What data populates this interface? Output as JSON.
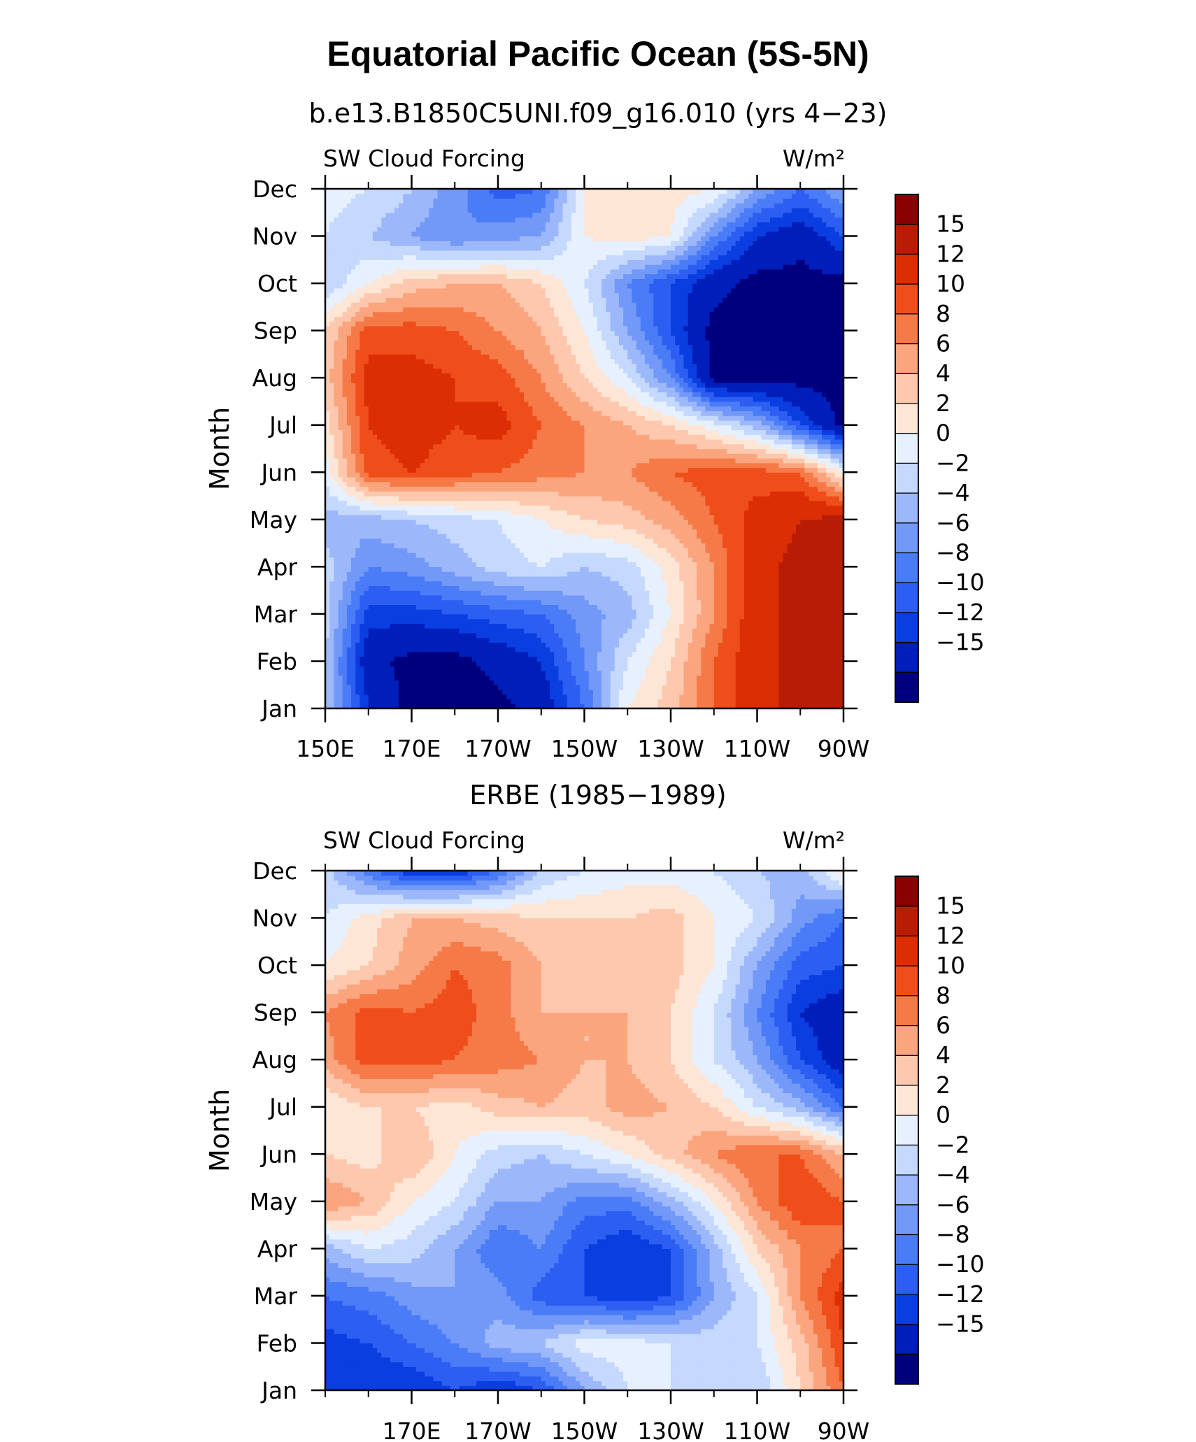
{
  "figure_title": "Equatorial Pacific Ocean (5S-5N)",
  "chart_data": [
    {
      "type": "heatmap",
      "title": "b.e13.B1850C5UNI.f09_g16.010 (yrs 4−23)",
      "left_string": "SW Cloud Forcing",
      "right_string": "W/m²",
      "ylabel": "Month",
      "xlabel": "",
      "x_tick_labels": [
        "150E",
        "170E",
        "170W",
        "150W",
        "130W",
        "110W",
        "90W"
      ],
      "x_range": [
        150,
        270
      ],
      "y_tick_labels": [
        "Jan",
        "Feb",
        "Mar",
        "Apr",
        "May",
        "Jun",
        "Jul",
        "Aug",
        "Sep",
        "Oct",
        "Nov",
        "Dec"
      ],
      "x": [
        150,
        160,
        170,
        180,
        190,
        200,
        210,
        220,
        230,
        240,
        250,
        260,
        270
      ],
      "y": [
        "Jan",
        "Feb",
        "Mar",
        "Apr",
        "May",
        "Jun",
        "Jul",
        "Aug",
        "Sep",
        "Oct",
        "Nov",
        "Dec"
      ],
      "z": [
        [
          -2,
          -12,
          -16,
          -16,
          -16,
          -14,
          -8,
          2,
          5,
          10,
          14,
          16,
          16
        ],
        [
          -2,
          -14,
          -16,
          -16,
          -14,
          -12,
          -6,
          0,
          4,
          10,
          14,
          16,
          16
        ],
        [
          -1,
          -11,
          -11,
          -10,
          -9,
          -8,
          -5,
          -3,
          2,
          8,
          14,
          16,
          16
        ],
        [
          -1,
          -6,
          -5,
          -3,
          -1,
          0,
          -2,
          -1,
          3,
          8,
          14,
          16,
          16
        ],
        [
          -3,
          -3,
          -2,
          -1,
          0,
          2,
          4,
          5,
          7,
          10,
          13,
          15,
          16
        ],
        [
          1,
          11,
          12,
          11,
          10,
          9,
          8,
          8,
          10,
          11,
          11,
          10,
          2
        ],
        [
          3,
          12,
          13,
          12,
          13,
          10,
          8,
          6,
          4,
          1,
          -3,
          -10,
          -16
        ],
        [
          5,
          13,
          13,
          12,
          11,
          8,
          4,
          0,
          -6,
          -16,
          -16,
          -16,
          -16
        ],
        [
          4,
          11,
          11,
          10,
          8,
          6,
          2,
          -4,
          -10,
          -16,
          -16,
          -16,
          -16
        ],
        [
          -2,
          2,
          5,
          6,
          6,
          4,
          0,
          -6,
          -10,
          -14,
          -16,
          -16,
          -16
        ],
        [
          0,
          -2,
          -4,
          -6,
          -5,
          -4,
          2,
          3,
          2,
          -6,
          -12,
          -14,
          -10
        ],
        [
          1,
          0,
          -2,
          -5,
          -9,
          -8,
          2,
          4,
          3,
          2,
          -4,
          -8,
          -4
        ]
      ],
      "colorbar": {
        "labels": [
          "15",
          "12",
          "10",
          "8",
          "6",
          "4",
          "2",
          "0",
          "−2",
          "−4",
          "−6",
          "−8",
          "−10",
          "−12",
          "−15"
        ],
        "levels": [
          -15,
          -12,
          -10,
          -8,
          -6,
          -4,
          -2,
          0,
          2,
          4,
          6,
          8,
          10,
          12,
          15
        ],
        "colors": [
          "#00007f",
          "#001eb9",
          "#0a3ee0",
          "#2c5ef2",
          "#4a7cf8",
          "#7299f8",
          "#9cb8fb",
          "#c5d8fd",
          "#e6f0ff",
          "#fde6d6",
          "#fdc8ae",
          "#fba57f",
          "#f67a48",
          "#ef4e1b",
          "#dc2e04",
          "#b81c04",
          "#8b0000"
        ]
      }
    },
    {
      "type": "heatmap",
      "title": "ERBE (1985−1989)",
      "left_string": "SW Cloud Forcing",
      "right_string": "W/m²",
      "ylabel": "Month",
      "xlabel": "",
      "x_tick_labels": [
        "170E",
        "170W",
        "150W",
        "130W",
        "110W",
        "90W"
      ],
      "x_range": [
        150,
        270
      ],
      "y_tick_labels": [
        "Jan",
        "Feb",
        "Mar",
        "Apr",
        "May",
        "Jun",
        "Jul",
        "Aug",
        "Sep",
        "Oct",
        "Nov",
        "Dec"
      ],
      "x": [
        150,
        160,
        170,
        180,
        190,
        200,
        210,
        220,
        230,
        240,
        250,
        260,
        270
      ],
      "y": [
        "Jan",
        "Feb",
        "Mar",
        "Apr",
        "May",
        "Jun",
        "Jul",
        "Aug",
        "Sep",
        "Oct",
        "Nov",
        "Dec"
      ],
      "z": [
        [
          -10,
          -12,
          -12,
          -10,
          -12,
          -10,
          -4,
          0,
          0,
          -1,
          -2,
          4,
          10
        ],
        [
          -11,
          -10,
          -8,
          -6,
          -3,
          -2,
          1,
          1,
          0,
          -1,
          0,
          5,
          12
        ],
        [
          -8,
          -7,
          -5,
          -4,
          -5,
          -9,
          -10,
          -12,
          -10,
          -4,
          0,
          8,
          13
        ],
        [
          -3,
          0,
          -1,
          -4,
          -8,
          -6,
          -10,
          -12,
          -10,
          -3,
          4,
          8,
          10
        ],
        [
          8,
          6,
          2,
          0,
          -4,
          -4,
          -7,
          -7,
          -3,
          2,
          8,
          12,
          10
        ],
        [
          4,
          3,
          6,
          2,
          -1,
          -2,
          0,
          2,
          5,
          8,
          10,
          10,
          6
        ],
        [
          2,
          4,
          4,
          3,
          5,
          6,
          5,
          7,
          6,
          4,
          0,
          -3,
          -8
        ],
        [
          7,
          11,
          11,
          10,
          9,
          8,
          6,
          6,
          4,
          0,
          -4,
          -10,
          -14
        ],
        [
          8,
          11,
          10,
          11,
          9,
          6,
          6,
          6,
          4,
          0,
          -6,
          -12,
          -14
        ],
        [
          2,
          4,
          7,
          10,
          9,
          6,
          4,
          6,
          5,
          2,
          -4,
          -9,
          -10
        ],
        [
          0,
          3,
          6,
          6,
          5,
          4,
          4,
          4,
          5,
          2,
          0,
          -5,
          -8
        ],
        [
          -1,
          -7,
          -12,
          -12,
          -8,
          -2,
          0,
          1,
          1,
          0,
          -2,
          -3,
          3
        ]
      ],
      "colorbar": {
        "labels": [
          "15",
          "12",
          "10",
          "8",
          "6",
          "4",
          "2",
          "0",
          "−2",
          "−4",
          "−6",
          "−8",
          "−10",
          "−12",
          "−15"
        ],
        "levels": [
          -15,
          -12,
          -10,
          -8,
          -6,
          -4,
          -2,
          0,
          2,
          4,
          6,
          8,
          10,
          12,
          15
        ],
        "colors": [
          "#00007f",
          "#001eb9",
          "#0a3ee0",
          "#2c5ef2",
          "#4a7cf8",
          "#7299f8",
          "#9cb8fb",
          "#c5d8fd",
          "#e6f0ff",
          "#fde6d6",
          "#fdc8ae",
          "#fba57f",
          "#f67a48",
          "#ef4e1b",
          "#dc2e04",
          "#b81c04",
          "#8b0000"
        ]
      }
    }
  ]
}
